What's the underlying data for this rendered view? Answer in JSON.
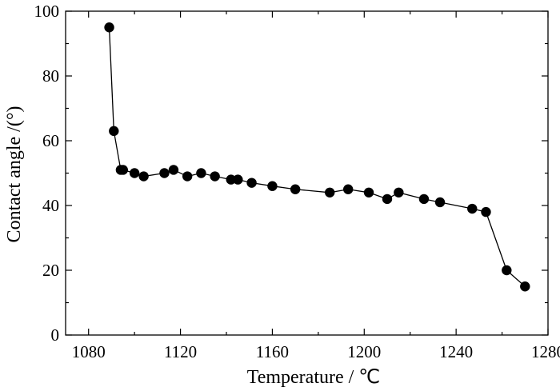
{
  "chart_data": {
    "type": "line",
    "title": "",
    "xlabel": "Temperature / ℃",
    "ylabel": "Contact angle /(°)",
    "xlim": [
      1070,
      1280
    ],
    "ylim": [
      0,
      100
    ],
    "xticks": [
      1080,
      1120,
      1160,
      1200,
      1240,
      1280
    ],
    "yticks": [
      0,
      20,
      40,
      60,
      80,
      100
    ],
    "grid": false,
    "legend": "none",
    "series": [
      {
        "color": "#000000",
        "marker": "filled-circle",
        "points": [
          {
            "x": 1089,
            "y": 95
          },
          {
            "x": 1091,
            "y": 63
          },
          {
            "x": 1094,
            "y": 51
          },
          {
            "x": 1095,
            "y": 51
          },
          {
            "x": 1100,
            "y": 50
          },
          {
            "x": 1104,
            "y": 49
          },
          {
            "x": 1113,
            "y": 50
          },
          {
            "x": 1117,
            "y": 51
          },
          {
            "x": 1123,
            "y": 49
          },
          {
            "x": 1129,
            "y": 50
          },
          {
            "x": 1135,
            "y": 49
          },
          {
            "x": 1142,
            "y": 48
          },
          {
            "x": 1145,
            "y": 48
          },
          {
            "x": 1151,
            "y": 47
          },
          {
            "x": 1160,
            "y": 46
          },
          {
            "x": 1170,
            "y": 45
          },
          {
            "x": 1185,
            "y": 44
          },
          {
            "x": 1193,
            "y": 45
          },
          {
            "x": 1202,
            "y": 44
          },
          {
            "x": 1210,
            "y": 42
          },
          {
            "x": 1215,
            "y": 44
          },
          {
            "x": 1226,
            "y": 42
          },
          {
            "x": 1233,
            "y": 41
          },
          {
            "x": 1247,
            "y": 39
          },
          {
            "x": 1253,
            "y": 38
          },
          {
            "x": 1262,
            "y": 20
          },
          {
            "x": 1270,
            "y": 15
          }
        ]
      }
    ]
  }
}
